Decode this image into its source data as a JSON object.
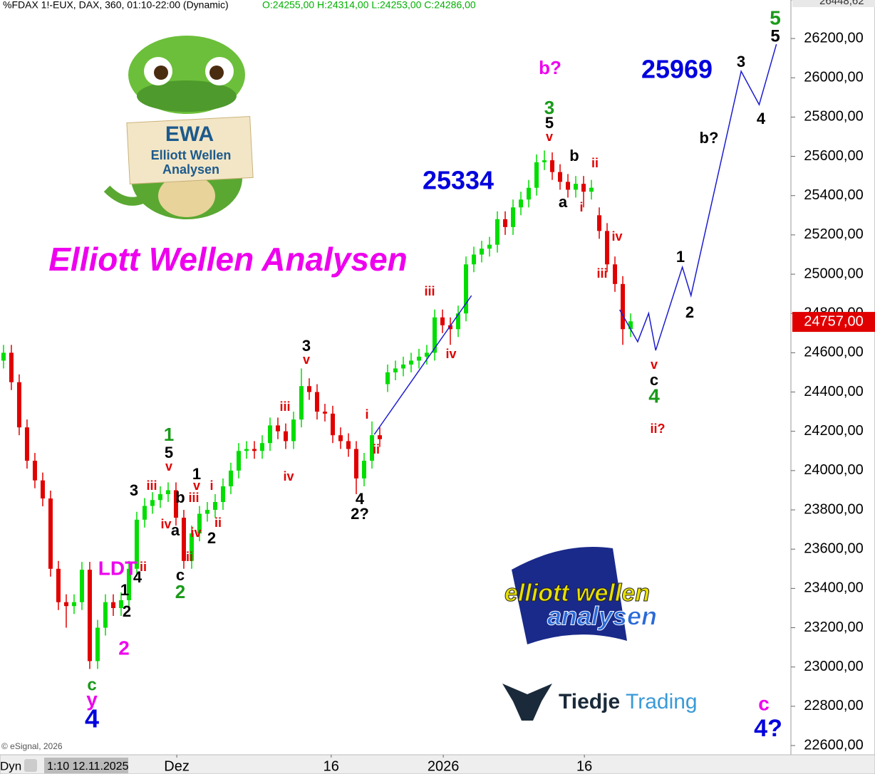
{
  "chart_data": {
    "type": "candlestick",
    "title": "Elliott Wellen Analysen",
    "symbol": "%FDAX 1!-EUX, DAX, 360, 01:10-22:00 (Dynamic)",
    "ohlc_label": "O:24255,00 H:24314,00 L:24253,00 C:24286,00",
    "copyright": "© eSignal, 2026",
    "mode_label": "Dyn",
    "start_label": "1:10 12.11.2025",
    "top_price_label": "26448,62",
    "last_price": {
      "value": 24757,
      "label": "24757,00"
    },
    "up_color": "#00dd00",
    "down_color": "#e00000",
    "projection_color": "#1c1cd0",
    "xlim": [
      -0.45,
      100.45
    ],
    "ylim": [
      22553,
      26396
    ],
    "xticks": [
      {
        "value": 22.1,
        "label": "Dez"
      },
      {
        "value": 41.8,
        "label": "16"
      },
      {
        "value": 56.1,
        "label": "2026"
      },
      {
        "value": 74.1,
        "label": "16"
      }
    ],
    "yticks": [
      {
        "value": 22600,
        "label": "22600,00"
      },
      {
        "value": 22800,
        "label": "22800,00"
      },
      {
        "value": 23000,
        "label": "23000,00"
      },
      {
        "value": 23200,
        "label": "23200,00"
      },
      {
        "value": 23400,
        "label": "23400,00"
      },
      {
        "value": 23600,
        "label": "23600,00"
      },
      {
        "value": 23800,
        "label": "23800,00"
      },
      {
        "value": 24000,
        "label": "24000,00"
      },
      {
        "value": 24200,
        "label": "24200,00"
      },
      {
        "value": 24400,
        "label": "24400,00"
      },
      {
        "value": 24600,
        "label": "24600,00"
      },
      {
        "value": 24800,
        "label": "24800,00"
      },
      {
        "value": 25000,
        "label": "25000,00"
      },
      {
        "value": 25200,
        "label": "25200,00"
      },
      {
        "value": 25400,
        "label": "25400,00"
      },
      {
        "value": 25600,
        "label": "25600,00"
      },
      {
        "value": 25800,
        "label": "25800,00"
      },
      {
        "value": 26000,
        "label": "26000,00"
      },
      {
        "value": 26200,
        "label": "26200,00"
      }
    ],
    "open": [
      24560,
      24600,
      24450,
      24220,
      24050,
      23950,
      23858,
      23500,
      23330,
      23310,
      23330,
      23495,
      23030,
      23200,
      23330,
      23300,
      23340,
      23500,
      23750,
      23820,
      23850,
      23880,
      23900,
      23760,
      23540,
      23680,
      23780,
      23800,
      23840,
      23920,
      24000,
      24100,
      24110,
      24100,
      24140,
      24230,
      24200,
      24150,
      24260,
      24430,
      24400,
      24300,
      24290,
      24180,
      24150,
      24110,
      23960,
      24050,
      24180,
      24440,
      24500,
      24520,
      24540,
      24560,
      24580,
      24600,
      24780,
      24740,
      24720,
      24800,
      25050,
      25100,
      25130,
      25150,
      25280,
      25240,
      25340,
      25380,
      25440,
      25570,
      25580,
      25520,
      25470,
      25430,
      25460,
      25420,
      25300,
      25220,
      25050,
      24950,
      24720
    ],
    "high": [
      24640,
      24640,
      24490,
      24260,
      24090,
      23990,
      23898,
      23540,
      23370,
      23370,
      23535,
      23535,
      23240,
      23370,
      23370,
      23380,
      23540,
      23790,
      23860,
      23890,
      23920,
      23940,
      23940,
      23800,
      23720,
      23820,
      23840,
      23880,
      23960,
      24040,
      24140,
      24150,
      24150,
      24180,
      24270,
      24270,
      24240,
      24300,
      24520,
      24470,
      24440,
      24340,
      24330,
      24220,
      24190,
      24150,
      24090,
      24250,
      24220,
      24540,
      24560,
      24580,
      24600,
      24620,
      24640,
      24820,
      24820,
      24780,
      24840,
      25090,
      25140,
      25170,
      25190,
      25320,
      25320,
      25380,
      25420,
      25480,
      25610,
      25630,
      25620,
      25560,
      25510,
      25500,
      25500,
      25480,
      25340,
      25260,
      25090,
      24990,
      24800
    ],
    "low": [
      24520,
      24410,
      24180,
      24010,
      23910,
      23818,
      23460,
      23290,
      23200,
      23270,
      23290,
      22990,
      22990,
      23160,
      23260,
      23260,
      23300,
      23460,
      23710,
      23780,
      23810,
      23840,
      23720,
      23500,
      23500,
      23640,
      23740,
      23760,
      23800,
      23880,
      23960,
      24060,
      24060,
      24060,
      24100,
      24160,
      24110,
      24110,
      24220,
      24360,
      24260,
      24250,
      24140,
      24110,
      24070,
      23880,
      23920,
      24010,
      24120,
      24400,
      24460,
      24480,
      24500,
      24520,
      24540,
      24560,
      24700,
      24640,
      24680,
      24760,
      25010,
      25060,
      25090,
      25110,
      25200,
      25200,
      25300,
      25340,
      25400,
      25530,
      25480,
      25430,
      25390,
      25390,
      25340,
      25380,
      25180,
      25010,
      24910,
      24640,
      24680
    ],
    "close": [
      24600,
      24450,
      24220,
      24050,
      23950,
      23858,
      23500,
      23330,
      23310,
      23330,
      23495,
      23030,
      23200,
      23330,
      23300,
      23340,
      23500,
      23750,
      23820,
      23850,
      23880,
      23900,
      23760,
      23540,
      23680,
      23780,
      23800,
      23840,
      23920,
      24000,
      24100,
      24110,
      24100,
      24140,
      24230,
      24200,
      24150,
      24260,
      24430,
      24400,
      24300,
      24290,
      24180,
      24150,
      24110,
      23960,
      24050,
      24180,
      24160,
      24500,
      24520,
      24540,
      24560,
      24580,
      24600,
      24780,
      24740,
      24720,
      24800,
      25050,
      25100,
      25130,
      25150,
      25280,
      25240,
      25340,
      25380,
      25440,
      25570,
      25580,
      25520,
      25470,
      25430,
      25460,
      25420,
      25440,
      25220,
      25050,
      24950,
      24720,
      24760
    ],
    "projections": [
      {
        "x": [
          47.3,
          59.7
        ],
        "y": [
          24184,
          24891
        ]
      },
      {
        "x": [
          78.6,
          80.9,
          82.3,
          83.2,
          86.6,
          87.7,
          94.1,
          96.4,
          98.6
        ],
        "y": [
          24819,
          24656,
          24801,
          24612,
          25036,
          24891,
          26033,
          25863,
          26171
        ]
      }
    ],
    "annotations": [
      {
        "text": "5",
        "color": "#1a9a1a"
      },
      {
        "text": "5",
        "color": "#000000"
      },
      {
        "text": "3",
        "color": "#000000"
      },
      {
        "text": "4",
        "color": "#000000"
      },
      {
        "text": "b?",
        "color": "#000000"
      },
      {
        "text": "25969",
        "color": "#0000dd"
      },
      {
        "text": "b?",
        "color": "#ee00ee"
      },
      {
        "text": "3",
        "color": "#1a9a1a"
      },
      {
        "text": "5",
        "color": "#000000"
      },
      {
        "text": "v",
        "color": "#e00000"
      },
      {
        "text": "b",
        "color": "#000000"
      },
      {
        "text": "ii",
        "color": "#e00000"
      },
      {
        "text": "a",
        "color": "#000000"
      },
      {
        "text": "i",
        "color": "#e00000"
      },
      {
        "text": "iv",
        "color": "#e00000"
      },
      {
        "text": "iii",
        "color": "#e00000"
      },
      {
        "text": "25334",
        "color": "#0000dd"
      },
      {
        "text": "iii",
        "color": "#e00000"
      },
      {
        "text": "iv",
        "color": "#e00000"
      },
      {
        "text": "1",
        "color": "#000000"
      },
      {
        "text": "2",
        "color": "#000000"
      },
      {
        "text": "v",
        "color": "#e00000"
      },
      {
        "text": "c",
        "color": "#000000"
      },
      {
        "text": "4",
        "color": "#1a9a1a"
      },
      {
        "text": "ii?",
        "color": "#e00000"
      },
      {
        "text": "3",
        "color": "#000000"
      },
      {
        "text": "v",
        "color": "#e00000"
      },
      {
        "text": "iii",
        "color": "#e00000"
      },
      {
        "text": "iv",
        "color": "#e00000"
      },
      {
        "text": "i",
        "color": "#e00000"
      },
      {
        "text": "ii",
        "color": "#e00000"
      },
      {
        "text": "4",
        "color": "#000000"
      },
      {
        "text": "2?",
        "color": "#000000"
      },
      {
        "text": "1",
        "color": "#1a9a1a"
      },
      {
        "text": "5",
        "color": "#000000"
      },
      {
        "text": "v",
        "color": "#e00000"
      },
      {
        "text": "1",
        "color": "#000000"
      },
      {
        "text": "v",
        "color": "#e00000"
      },
      {
        "text": "i",
        "color": "#e00000"
      },
      {
        "text": "3",
        "color": "#000000"
      },
      {
        "text": "iii",
        "color": "#e00000"
      },
      {
        "text": "b",
        "color": "#000000"
      },
      {
        "text": "iii",
        "color": "#e00000"
      },
      {
        "text": "iv",
        "color": "#e00000"
      },
      {
        "text": "a",
        "color": "#000000"
      },
      {
        "text": "iv",
        "color": "#e00000"
      },
      {
        "text": "ii",
        "color": "#e00000"
      },
      {
        "text": "2",
        "color": "#000000"
      },
      {
        "text": "ii",
        "color": "#e00000"
      },
      {
        "text": "c",
        "color": "#000000"
      },
      {
        "text": "2",
        "color": "#1a9a1a"
      },
      {
        "text": "LDT",
        "color": "#ee00ee"
      },
      {
        "text": "ii",
        "color": "#e00000"
      },
      {
        "text": "4",
        "color": "#000000"
      },
      {
        "text": "1",
        "color": "#000000"
      },
      {
        "text": "2",
        "color": "#000000"
      },
      {
        "text": "2",
        "color": "#ee00ee"
      },
      {
        "text": "c",
        "color": "#1a9a1a"
      },
      {
        "text": "y",
        "color": "#ee00ee"
      },
      {
        "text": "4",
        "color": "#0000dd"
      },
      {
        "text": "c",
        "color": "#ee00ee"
      },
      {
        "text": "4?",
        "color": "#0000dd"
      }
    ]
  },
  "logos": {
    "ewa": {
      "title": "EWA",
      "line1": "Elliott Wellen",
      "line2": "Analysen"
    },
    "ewa_flag": {
      "line1": "elliott wellen",
      "line2": "analysen"
    },
    "tiedje": {
      "part1": "Tiedje",
      "part2": "Trading"
    }
  }
}
